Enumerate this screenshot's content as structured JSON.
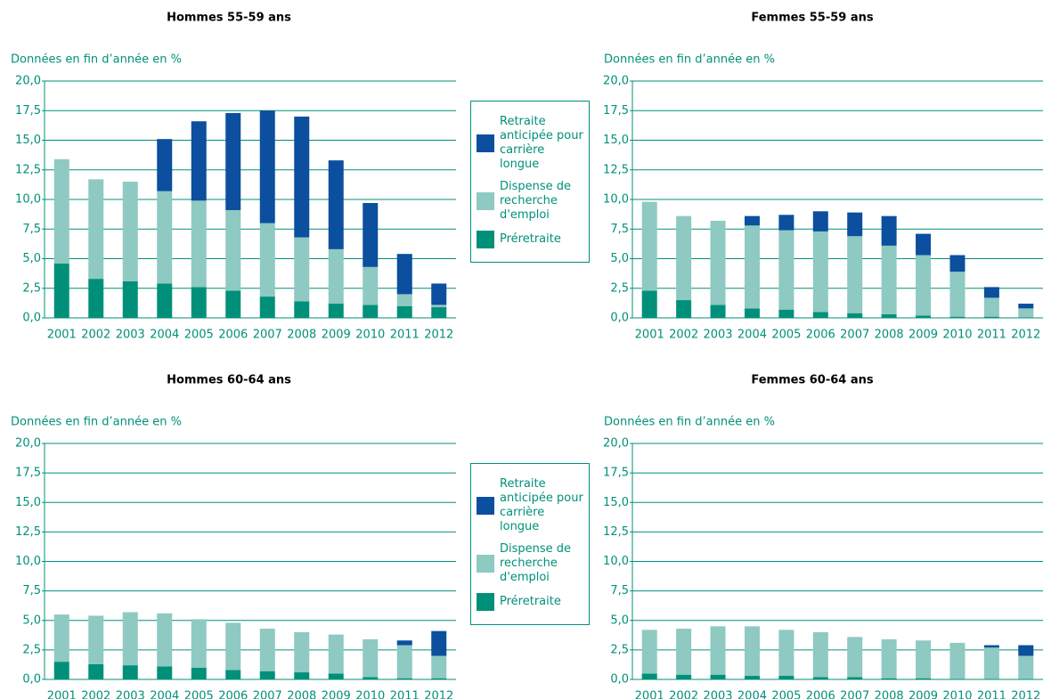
{
  "chart_data": [
    {
      "type": "bar",
      "stacked": true,
      "title": "Hommes 55-59 ans",
      "subtitle": "Données en fin d’année en %",
      "categories": [
        "2001",
        "2002",
        "2003",
        "2004",
        "2005",
        "2006",
        "2007",
        "2008",
        "2009",
        "2010",
        "2011",
        "2012"
      ],
      "series": [
        {
          "name": "Préretraite",
          "color": "#00907a",
          "values": [
            4.6,
            3.3,
            3.1,
            2.9,
            2.6,
            2.3,
            1.8,
            1.4,
            1.2,
            1.1,
            1.0,
            0.9
          ]
        },
        {
          "name": "Dispense de recherche d'emploi",
          "color": "#8ec9c2",
          "values": [
            8.8,
            8.4,
            8.4,
            7.8,
            7.3,
            6.8,
            6.2,
            5.4,
            4.6,
            3.2,
            1.0,
            0.2
          ]
        },
        {
          "name": "Retraite anticipée pour carrière longue",
          "color": "#0b4f9e",
          "values": [
            0,
            0,
            0,
            4.4,
            6.7,
            8.2,
            9.5,
            10.2,
            7.5,
            5.4,
            3.4,
            1.8
          ]
        }
      ],
      "ylim": [
        0,
        20
      ],
      "yticks": [
        {
          "value": 0,
          "label": "0,0"
        },
        {
          "value": 2.5,
          "label": "2,5"
        },
        {
          "value": 5,
          "label": "5,0"
        },
        {
          "value": 7.5,
          "label": "7,5"
        },
        {
          "value": 10,
          "label": "10,0"
        },
        {
          "value": 12.5,
          "label": "12,5"
        },
        {
          "value": 15,
          "label": "15,0"
        },
        {
          "value": 17.5,
          "label": "17,5"
        },
        {
          "value": 20,
          "label": "20,0"
        }
      ],
      "grid": true,
      "legend": "right"
    },
    {
      "type": "bar",
      "stacked": true,
      "title": "Femmes 55-59 ans",
      "subtitle": "Données en fin d’année en %",
      "categories": [
        "2001",
        "2002",
        "2003",
        "2004",
        "2005",
        "2006",
        "2007",
        "2008",
        "2009",
        "2010",
        "2011",
        "2012"
      ],
      "series": [
        {
          "name": "Préretraite",
          "color": "#00907a",
          "values": [
            2.3,
            1.5,
            1.1,
            0.8,
            0.7,
            0.5,
            0.4,
            0.3,
            0.2,
            0.1,
            0.1,
            0.05
          ]
        },
        {
          "name": "Dispense de recherche d'emploi",
          "color": "#8ec9c2",
          "values": [
            7.5,
            7.1,
            7.1,
            7.0,
            6.7,
            6.8,
            6.5,
            5.8,
            5.1,
            3.8,
            1.6,
            0.75
          ]
        },
        {
          "name": "Retraite anticipée pour carrière longue",
          "color": "#0b4f9e",
          "values": [
            0,
            0,
            0,
            0.8,
            1.3,
            1.7,
            2.0,
            2.5,
            1.8,
            1.4,
            0.9,
            0.4
          ]
        }
      ],
      "ylim": [
        0,
        20
      ],
      "yticks": [
        {
          "value": 0,
          "label": "0,0"
        },
        {
          "value": 2.5,
          "label": "2,5"
        },
        {
          "value": 5,
          "label": "5,0"
        },
        {
          "value": 7.5,
          "label": "7,5"
        },
        {
          "value": 10,
          "label": "10,0"
        },
        {
          "value": 12.5,
          "label": "12,5"
        },
        {
          "value": 15,
          "label": "15,0"
        },
        {
          "value": 17.5,
          "label": "17,5"
        },
        {
          "value": 20,
          "label": "20,0"
        }
      ],
      "grid": true,
      "legend": "none"
    },
    {
      "type": "bar",
      "stacked": true,
      "title": "Hommes 60-64 ans",
      "subtitle": "Données en fin d’année en %",
      "categories": [
        "2001",
        "2002",
        "2003",
        "2004",
        "2005",
        "2006",
        "2007",
        "2008",
        "2009",
        "2010",
        "2011",
        "2012"
      ],
      "series": [
        {
          "name": "Préretraite",
          "color": "#00907a",
          "values": [
            1.5,
            1.3,
            1.2,
            1.1,
            1.0,
            0.8,
            0.7,
            0.6,
            0.5,
            0.2,
            0.1,
            0.1
          ]
        },
        {
          "name": "Dispense de recherche d'emploi",
          "color": "#8ec9c2",
          "values": [
            4.0,
            4.1,
            4.5,
            4.5,
            4.1,
            4.0,
            3.6,
            3.4,
            3.3,
            3.2,
            2.8,
            1.9
          ]
        },
        {
          "name": "Retraite anticipée pour carrière longue",
          "color": "#0b4f9e",
          "values": [
            0,
            0,
            0,
            0,
            0,
            0,
            0,
            0,
            0,
            0,
            0.4,
            2.1
          ]
        }
      ],
      "ylim": [
        0,
        20
      ],
      "yticks": [
        {
          "value": 0,
          "label": "0,0"
        },
        {
          "value": 2.5,
          "label": "2,5"
        },
        {
          "value": 5,
          "label": "5,0"
        },
        {
          "value": 7.5,
          "label": "7,5"
        },
        {
          "value": 10,
          "label": "10,0"
        },
        {
          "value": 12.5,
          "label": "12,5"
        },
        {
          "value": 15,
          "label": "15,0"
        },
        {
          "value": 17.5,
          "label": "17,5"
        },
        {
          "value": 20,
          "label": "20,0"
        }
      ],
      "grid": true,
      "legend": "right"
    },
    {
      "type": "bar",
      "stacked": true,
      "title": "Femmes 60-64 ans",
      "subtitle": "Données en fin d’année en %",
      "categories": [
        "2001",
        "2002",
        "2003",
        "2004",
        "2005",
        "2006",
        "2007",
        "2008",
        "2009",
        "2010",
        "2011",
        "2012"
      ],
      "series": [
        {
          "name": "Préretraite",
          "color": "#00907a",
          "values": [
            0.5,
            0.4,
            0.4,
            0.3,
            0.3,
            0.2,
            0.2,
            0.1,
            0.1,
            0.05,
            0.05,
            0.05
          ]
        },
        {
          "name": "Dispense de recherche d'emploi",
          "color": "#8ec9c2",
          "values": [
            3.7,
            3.9,
            4.1,
            4.2,
            3.9,
            3.8,
            3.4,
            3.3,
            3.2,
            3.05,
            2.65,
            1.95
          ]
        },
        {
          "name": "Retraite anticipée pour carrière longue",
          "color": "#0b4f9e",
          "values": [
            0,
            0,
            0,
            0,
            0,
            0,
            0,
            0,
            0,
            0,
            0.2,
            0.9
          ]
        }
      ],
      "ylim": [
        0,
        20
      ],
      "yticks": [
        {
          "value": 0,
          "label": "0,0"
        },
        {
          "value": 2.5,
          "label": "2,5"
        },
        {
          "value": 5,
          "label": "5,0"
        },
        {
          "value": 7.5,
          "label": "7,5"
        },
        {
          "value": 10,
          "label": "10,0"
        },
        {
          "value": 12.5,
          "label": "12,5"
        },
        {
          "value": 15,
          "label": "15,0"
        },
        {
          "value": 17.5,
          "label": "17,5"
        },
        {
          "value": 20,
          "label": "20,0"
        }
      ],
      "grid": true,
      "legend": "none"
    }
  ]
}
